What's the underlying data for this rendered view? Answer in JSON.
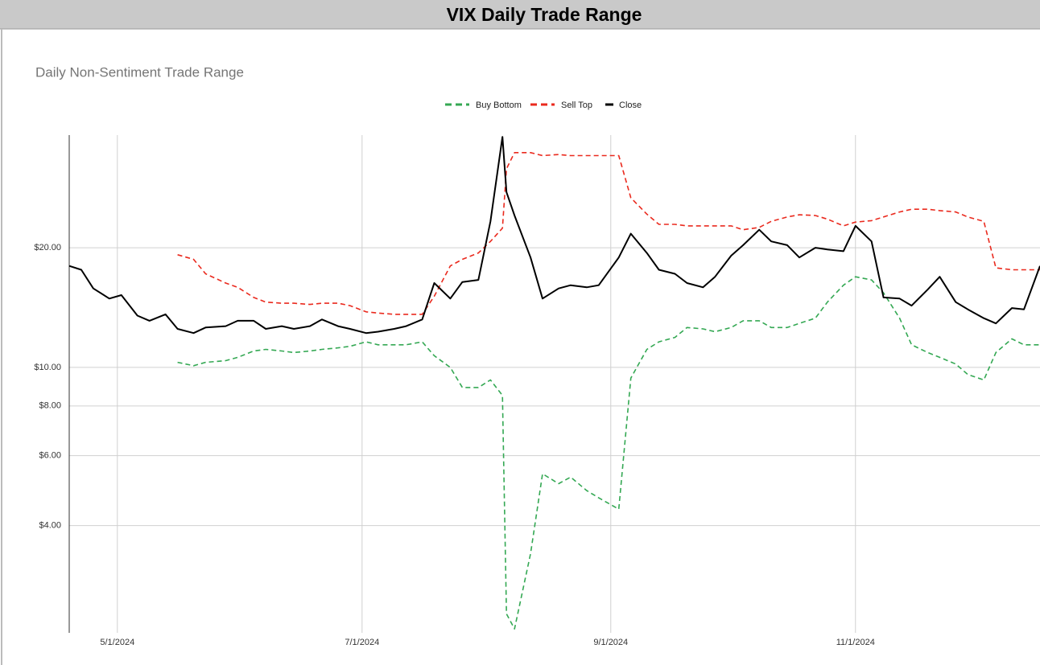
{
  "header": {
    "title": "VIX Daily Trade Range"
  },
  "chart_data": {
    "type": "line",
    "title": "Daily Non-Sentiment Trade Range",
    "log_scale": true,
    "grid": true,
    "legend": "top",
    "x": [
      "2024-04-19",
      "2024-04-22",
      "2024-04-25",
      "2024-04-29",
      "2024-05-02",
      "2024-05-06",
      "2024-05-09",
      "2024-05-13",
      "2024-05-16",
      "2024-05-20",
      "2024-05-23",
      "2024-05-28",
      "2024-05-31",
      "2024-06-04",
      "2024-06-07",
      "2024-06-11",
      "2024-06-14",
      "2024-06-18",
      "2024-06-21",
      "2024-06-25",
      "2024-06-28",
      "2024-07-02",
      "2024-07-05",
      "2024-07-09",
      "2024-07-12",
      "2024-07-16",
      "2024-07-19",
      "2024-07-23",
      "2024-07-26",
      "2024-07-30",
      "2024-08-02",
      "2024-08-05",
      "2024-08-06",
      "2024-08-08",
      "2024-08-12",
      "2024-08-15",
      "2024-08-19",
      "2024-08-22",
      "2024-08-26",
      "2024-08-29",
      "2024-09-03",
      "2024-09-06",
      "2024-09-10",
      "2024-09-13",
      "2024-09-17",
      "2024-09-20",
      "2024-09-24",
      "2024-09-27",
      "2024-10-01",
      "2024-10-04",
      "2024-10-08",
      "2024-10-11",
      "2024-10-15",
      "2024-10-18",
      "2024-10-22",
      "2024-10-25",
      "2024-10-29",
      "2024-11-01",
      "2024-11-05",
      "2024-11-08",
      "2024-11-12",
      "2024-11-15",
      "2024-11-19",
      "2024-11-22",
      "2024-11-26",
      "2024-11-29",
      "2024-12-03",
      "2024-12-06",
      "2024-12-10",
      "2024-12-13",
      "2024-12-17"
    ],
    "series": [
      {
        "name": "Buy Bottom",
        "color": "#34a853",
        "dashed": true,
        "values": [
          null,
          null,
          null,
          null,
          null,
          null,
          null,
          null,
          10.3,
          10.1,
          10.3,
          10.4,
          10.6,
          11.0,
          11.1,
          11.0,
          10.9,
          11.0,
          11.1,
          11.2,
          11.3,
          11.6,
          11.4,
          11.4,
          11.4,
          11.6,
          10.7,
          10.0,
          8.9,
          8.9,
          9.3,
          8.5,
          2.4,
          2.2,
          3.4,
          5.4,
          5.1,
          5.3,
          4.9,
          4.7,
          4.4,
          9.4,
          11.1,
          11.6,
          11.9,
          12.6,
          12.5,
          12.3,
          12.6,
          13.1,
          13.1,
          12.6,
          12.6,
          12.9,
          13.3,
          14.6,
          16.1,
          16.9,
          16.6,
          15.4,
          13.3,
          11.4,
          10.9,
          10.6,
          10.2,
          9.6,
          9.3,
          10.9,
          11.8,
          11.4,
          11.4
        ]
      },
      {
        "name": "Sell Top",
        "color": "#ea2a1e",
        "dashed": true,
        "values": [
          null,
          null,
          null,
          null,
          null,
          null,
          null,
          null,
          19.2,
          18.7,
          17.2,
          16.3,
          15.9,
          15.0,
          14.6,
          14.5,
          14.5,
          14.4,
          14.5,
          14.5,
          14.3,
          13.8,
          13.7,
          13.6,
          13.6,
          13.6,
          15.1,
          18.0,
          18.7,
          19.4,
          20.75,
          22.4,
          31.6,
          34.7,
          34.7,
          34.1,
          34.3,
          34.1,
          34.1,
          34.1,
          34.1,
          26.7,
          24.3,
          22.9,
          22.9,
          22.7,
          22.7,
          22.7,
          22.7,
          22.2,
          22.5,
          23.3,
          23.9,
          24.2,
          24.1,
          23.6,
          22.7,
          23.2,
          23.4,
          23.9,
          24.6,
          25.0,
          25.0,
          24.8,
          24.6,
          23.9,
          23.3,
          17.8,
          17.6,
          17.6,
          17.6
        ]
      },
      {
        "name": "Close",
        "color": "#000000",
        "dashed": false,
        "values": [
          18.0,
          17.6,
          15.8,
          14.9,
          15.2,
          13.5,
          13.1,
          13.6,
          12.5,
          12.2,
          12.6,
          12.7,
          13.1,
          13.1,
          12.5,
          12.7,
          12.5,
          12.7,
          13.2,
          12.7,
          12.5,
          12.2,
          12.3,
          12.5,
          12.7,
          13.2,
          16.3,
          14.9,
          16.4,
          16.6,
          23.3,
          38.0,
          27.6,
          24.1,
          18.9,
          14.9,
          15.8,
          16.1,
          15.9,
          16.1,
          18.9,
          21.7,
          19.4,
          17.6,
          17.2,
          16.3,
          15.9,
          16.9,
          19.1,
          20.3,
          22.2,
          20.75,
          20.3,
          18.9,
          20.0,
          19.8,
          19.6,
          22.7,
          20.75,
          15.0,
          14.9,
          14.3,
          15.7,
          16.9,
          14.6,
          14.0,
          13.3,
          12.9,
          14.1,
          14.0,
          18.0
        ]
      }
    ],
    "xlim": [
      "2024-04-19",
      "2024-12-17"
    ],
    "xticks": [
      {
        "value": "2024-05-01",
        "label": "5/1/2024"
      },
      {
        "value": "2024-07-01",
        "label": "7/1/2024"
      },
      {
        "value": "2024-09-01",
        "label": "9/1/2024"
      },
      {
        "value": "2024-11-01",
        "label": "11/1/2024"
      }
    ],
    "ylim": [
      2.15,
      38.4
    ],
    "yticks": [
      {
        "value": 4,
        "label": "$4.00"
      },
      {
        "value": 6,
        "label": "$6.00"
      },
      {
        "value": 8,
        "label": "$8.00"
      },
      {
        "value": 10,
        "label": "$10.00"
      },
      {
        "value": 20,
        "label": "$20.00"
      }
    ]
  }
}
